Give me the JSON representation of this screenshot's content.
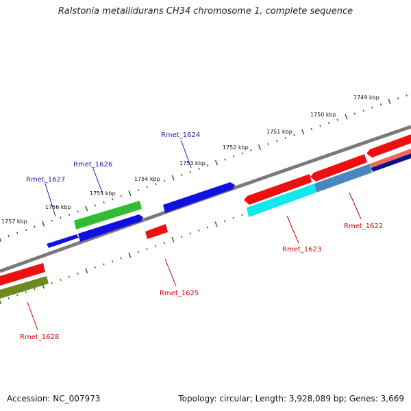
{
  "title": "Ralstonia metallidurans CH34 chromosome 1, complete sequence",
  "footer": {
    "accession": "Accession: NC_007973",
    "topology": "Topology: circular; Length: 3,928,089 bp; Genes: 3,669"
  },
  "colors": {
    "backbone": "#7a7a7a",
    "tick": "#2a7a1a",
    "forward_label": "#1a1ab4",
    "reverse_label": "#cc0000"
  },
  "ticks": [
    {
      "label": "1749 kbp"
    },
    {
      "label": "1750 kbp"
    },
    {
      "label": "1751 kbp"
    },
    {
      "label": "1752 kbp"
    },
    {
      "label": "1753 kbp"
    },
    {
      "label": "1754 kbp"
    },
    {
      "label": "1755 kbp"
    },
    {
      "label": "1756 kbp"
    },
    {
      "label": "1757 kbp"
    }
  ],
  "gene_labels": [
    {
      "text": "Rmet_1624",
      "strand": "forward"
    },
    {
      "text": "Rmet_1626",
      "strand": "forward"
    },
    {
      "text": "Rmet_1627",
      "strand": "forward"
    },
    {
      "text": "Rmet_1622",
      "strand": "reverse"
    },
    {
      "text": "Rmet_1623",
      "strand": "reverse"
    },
    {
      "text": "Rmet_1625",
      "strand": "reverse"
    },
    {
      "text": "Rmet_1628",
      "strand": "reverse"
    }
  ],
  "features": [
    {
      "name": "blue-feature",
      "color": "#1010e0"
    },
    {
      "name": "green-feature",
      "color": "#33bb33"
    },
    {
      "name": "red-feature",
      "color": "#ee1010"
    },
    {
      "name": "cyan-feature",
      "color": "#11e8ee"
    },
    {
      "name": "steel-feature",
      "color": "#4a86c0"
    },
    {
      "name": "salmon-feature",
      "color": "#ee6a55"
    },
    {
      "name": "navy-feature",
      "color": "#10108a"
    },
    {
      "name": "olive-feature",
      "color": "#6e8a1e"
    }
  ]
}
